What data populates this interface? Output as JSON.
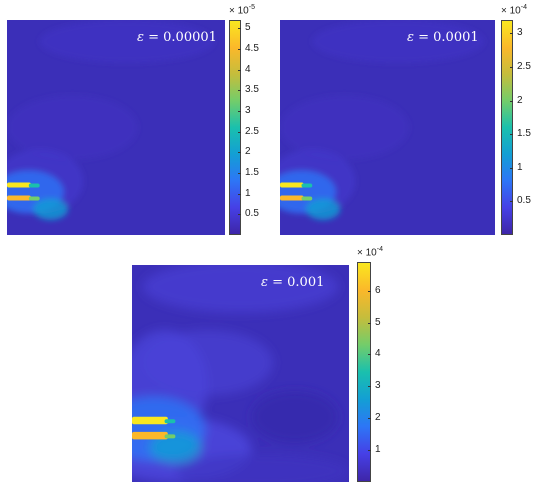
{
  "colors": {
    "background_field": "#3b2fb8",
    "colormap": [
      "#3e26a8",
      "#4640e6",
      "#2d76f6",
      "#139fd4",
      "#1ac0ad",
      "#73cd6a",
      "#c5bd3c",
      "#fbb82a",
      "#f9e71f"
    ]
  },
  "chart_data": [
    {
      "type": "heatmap",
      "label_prefix": "ε = ",
      "epsilon": "0.00001",
      "colorbar": {
        "exponent_base": "× 10",
        "exponent": "-5",
        "range": [
          0,
          5.2
        ],
        "ticks": [
          "0.5",
          "1",
          "1.5",
          "2",
          "2.5",
          "3",
          "3.5",
          "4",
          "4.5",
          "5"
        ],
        "tick_values": [
          0.5,
          1,
          1.5,
          2,
          2.5,
          3,
          3.5,
          4,
          4.5,
          5
        ]
      }
    },
    {
      "type": "heatmap",
      "label_prefix": "ε = ",
      "epsilon": "0.0001",
      "colorbar": {
        "exponent_base": "× 10",
        "exponent": "-4",
        "range": [
          0,
          3.2
        ],
        "ticks": [
          "0.5",
          "1",
          "1.5",
          "2",
          "2.5",
          "3"
        ],
        "tick_values": [
          0.5,
          1,
          1.5,
          2,
          2.5,
          3
        ]
      }
    },
    {
      "type": "heatmap",
      "label_prefix": "ε = ",
      "epsilon": "0.001",
      "colorbar": {
        "exponent_base": "× 10",
        "exponent": "-4",
        "range": [
          0,
          6.9
        ],
        "ticks": [
          "1",
          "2",
          "3",
          "4",
          "5",
          "6"
        ],
        "tick_values": [
          1,
          2,
          3,
          4,
          5,
          6
        ]
      }
    }
  ]
}
